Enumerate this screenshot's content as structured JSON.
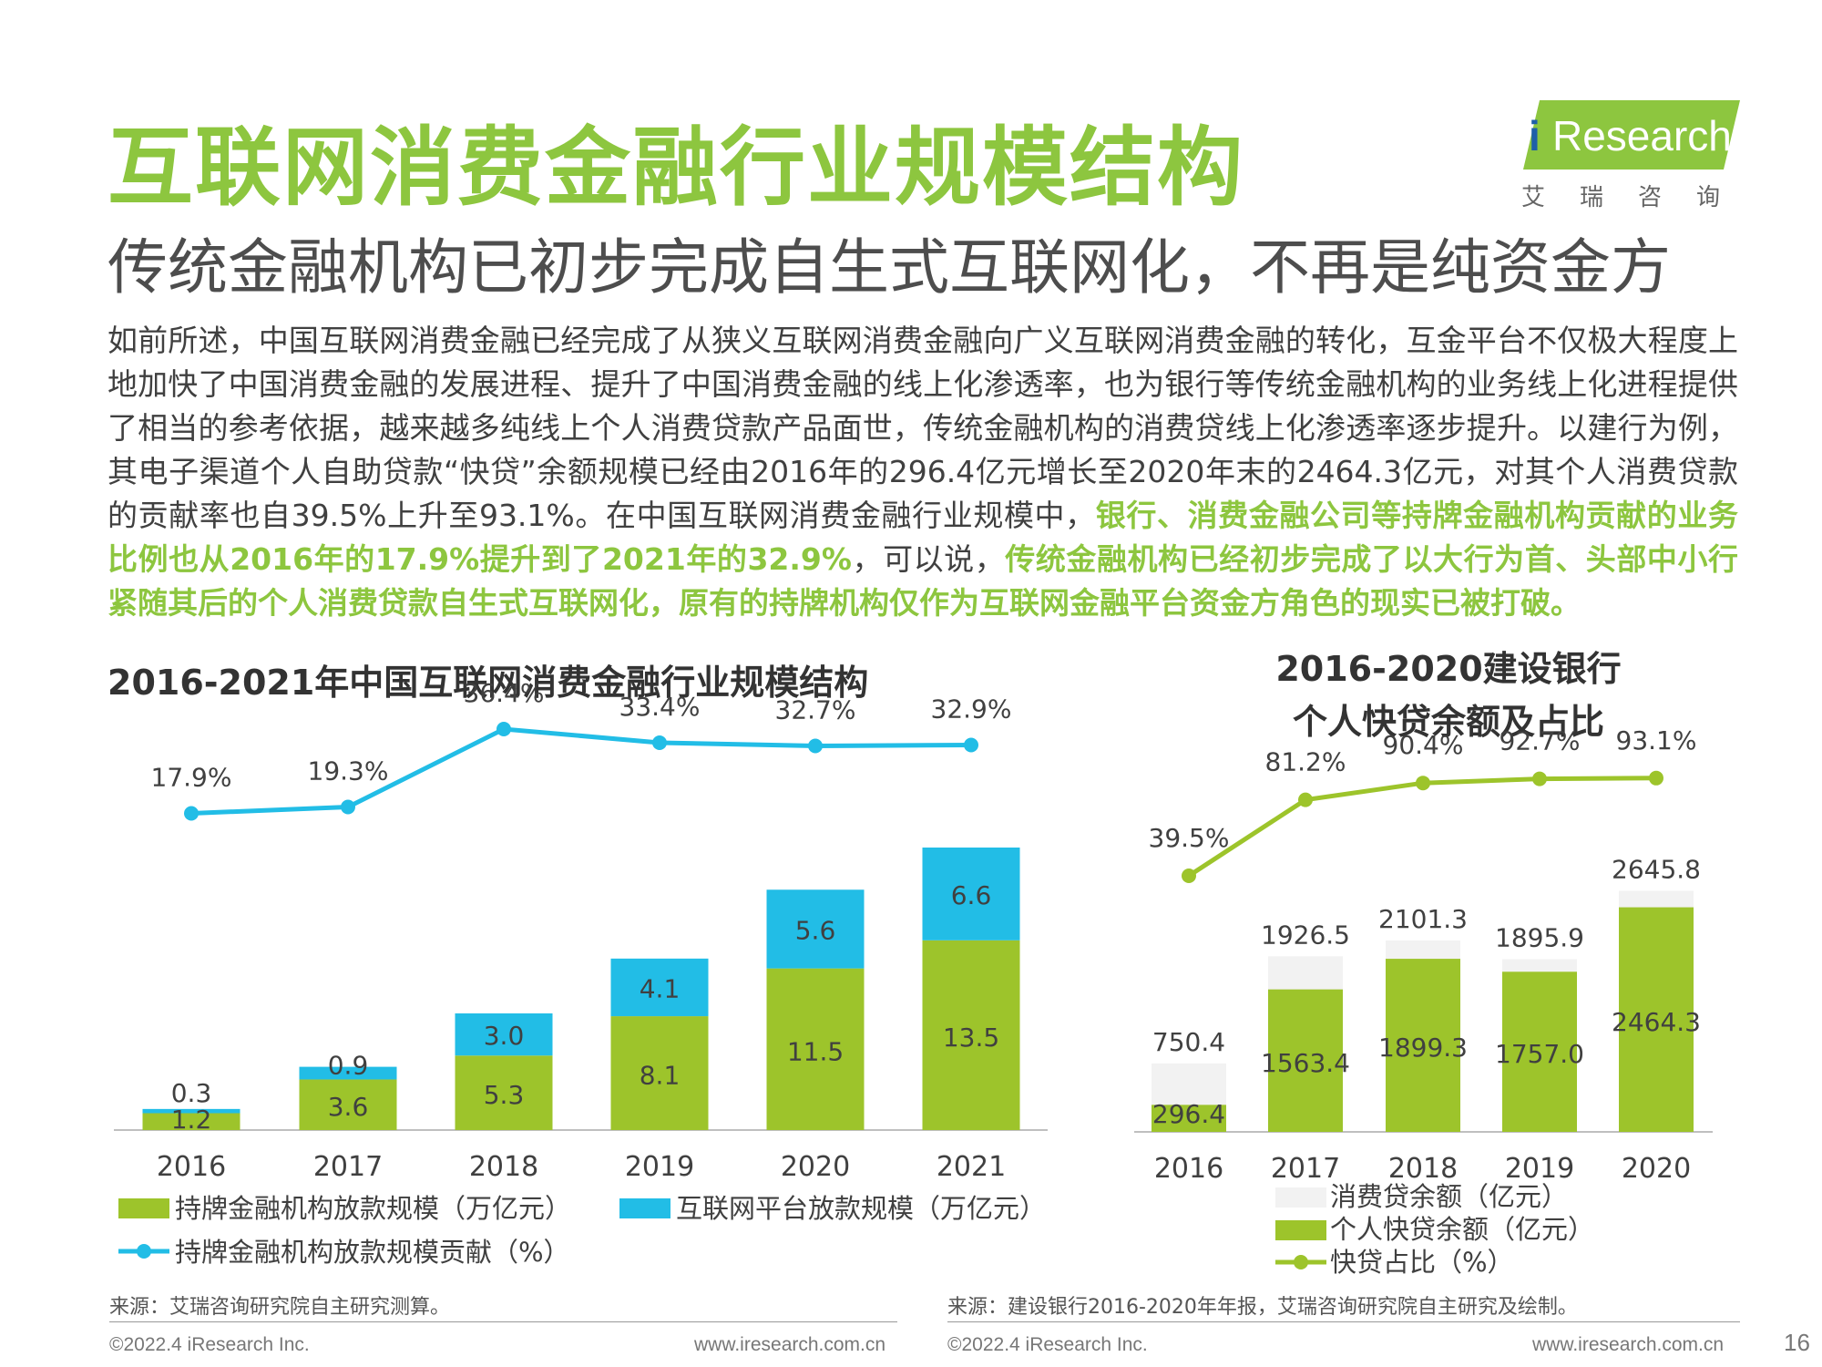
{
  "header": {
    "title": "互联网消费金融行业规模结构",
    "subtitle": "传统金融机构已初步完成自生式互联网化，不再是纯资金方",
    "logo_text": "Research",
    "logo_i": "i",
    "logo_cn": "艾瑞咨询"
  },
  "paragraph": {
    "part1": "如前所述，中国互联网消费金融已经完成了从狭义互联网消费金融向广义互联网消费金融的转化，互金平台不仅极大程度上地加快了中国消费金融的发展进程、提升了中国消费金融的线上化渗透率，也为银行等传统金融机构的业务线上化进程提供了相当的参考依据，越来越多纯线上个人消费贷款产品面世，传统金融机构的消费贷线上化渗透率逐步提升。以建行为例，其电子渠道个人自助贷款“快贷”余额规模已经由2016年的296.4亿元增长至2020年末的2464.3亿元，对其个人消费贷款的贡献率也自39.5%上升至93.1%。在中国互联网消费金融行业规模中，",
    "highlight1": "银行、消费金融公司等持牌金融机构贡献的业务比例也从2016年的17.9%提升到了2021年的32.9%",
    "part2": "，可以说，",
    "highlight2": "传统金融机构已经初步完成了以大行为首、头部中小行紧随其后的个人消费贷款自生式互联网化，原有的持牌机构仅作为互联网金融平台资金方角色的现实已被打破。"
  },
  "chart_data": [
    {
      "type": "bar",
      "stacked": true,
      "title": "2016-2021年中国互联网消费金融行业规模结构",
      "categories": [
        "2016",
        "2017",
        "2018",
        "2019",
        "2020",
        "2021"
      ],
      "ylim": [
        0,
        20.1
      ],
      "series": [
        {
          "name": "持牌金融机构放款规模（万亿元）",
          "values": [
            1.2,
            3.6,
            5.3,
            8.1,
            11.5,
            13.5
          ],
          "labels": [
            "1.2",
            "3.6",
            "5.3",
            "8.1",
            "11.5",
            "13.5"
          ],
          "color": "#9dc42b"
        },
        {
          "name": "互联网平台放款规模（万亿元）",
          "values": [
            0.3,
            0.9,
            3.0,
            4.1,
            5.6,
            6.6
          ],
          "labels": [
            "0.3",
            "0.9",
            "3.0",
            "4.1",
            "5.6",
            "6.6"
          ],
          "color": "#22bde6"
        }
      ],
      "line": {
        "name": "持牌金融机构放款规模贡献（%）",
        "values": [
          17.9,
          19.3,
          36.4,
          33.4,
          32.7,
          32.9
        ],
        "labels": [
          "17.9%",
          "19.3%",
          "36.4%",
          "33.4%",
          "32.7%",
          "32.9%"
        ],
        "color": "#22bde6",
        "ylim": [
          -20,
          40
        ]
      }
    },
    {
      "type": "bar",
      "stacked": false,
      "overlay": true,
      "title_line1": "2016-2020建设银行",
      "title_line2": "个人快贷余额及占比",
      "categories": [
        "2016",
        "2017",
        "2018",
        "2019",
        "2020"
      ],
      "ylim": [
        0,
        2900
      ],
      "series": [
        {
          "name": "消费贷余额（亿元）",
          "values": [
            750.4,
            1926.5,
            2101.3,
            1895.9,
            2645.8
          ],
          "labels": [
            "750.4",
            "1926.5",
            "2101.3",
            "1895.9",
            "2645.8"
          ],
          "color": "#f2f2f2"
        },
        {
          "name": "个人快贷余额（亿元）",
          "values": [
            296.4,
            1563.4,
            1899.3,
            1757.0,
            2464.3
          ],
          "labels": [
            "296.4",
            "1563.4",
            "1899.3",
            "1757.0",
            "2464.3"
          ],
          "color": "#9dc42b"
        }
      ],
      "line": {
        "name": "快贷占比（%）",
        "values": [
          39.5,
          81.2,
          90.4,
          92.7,
          93.1
        ],
        "labels": [
          "39.5%",
          "81.2%",
          "90.4%",
          "92.7%",
          "93.1%"
        ],
        "color": "#9dc42b",
        "ylim": [
          -45,
          105
        ]
      }
    }
  ],
  "sources": {
    "left": "来源：艾瑞咨询研究院自主研究测算。",
    "right": "来源：建设银行2016-2020年年报，艾瑞咨询研究院自主研究及绘制。"
  },
  "footer": {
    "copyright_left": "©2022.4 iResearch Inc.",
    "url_left": "www.iresearch.com.cn",
    "copyright_right": "©2022.4 iResearch Inc.",
    "url_right": "www.iresearch.com.cn",
    "page_number": "16"
  }
}
